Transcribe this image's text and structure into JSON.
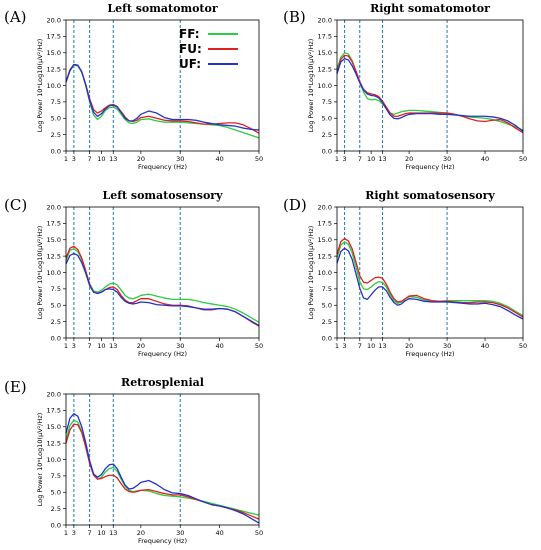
{
  "chart_data": [
    {
      "type": "line",
      "panel_label": "(A)",
      "title": "Left somatomotor",
      "xlabel": "Frequency (Hz)",
      "ylabel": "Log Power 10*Log10(µV²/Hz)",
      "xlim": [
        1,
        50
      ],
      "ylim": [
        0,
        20
      ],
      "xticks": [
        1,
        3,
        7,
        10,
        13,
        20,
        30,
        40,
        50
      ],
      "yticks": [
        0.0,
        2.5,
        5.0,
        7.5,
        10.0,
        12.5,
        15.0,
        17.5,
        20.0
      ],
      "vlines": [
        3,
        7,
        13,
        30
      ],
      "legend": {
        "placement": "top-right"
      },
      "x": [
        1,
        2,
        3,
        4,
        5,
        6,
        7,
        8,
        9,
        10,
        11,
        12,
        13,
        14,
        15,
        16,
        17,
        18,
        19,
        20,
        22,
        24,
        26,
        28,
        30,
        32,
        34,
        36,
        38,
        40,
        42,
        44,
        46,
        48,
        50
      ],
      "series": [
        {
          "name": "FF:",
          "color": "#2ecc40",
          "values": [
            10.5,
            12.2,
            13.1,
            13.0,
            12.0,
            10.0,
            7.5,
            5.5,
            4.8,
            5.3,
            6.2,
            6.6,
            6.7,
            6.4,
            5.6,
            4.8,
            4.3,
            4.2,
            4.4,
            4.8,
            4.9,
            4.6,
            4.4,
            4.4,
            4.4,
            4.3,
            4.2,
            4.1,
            4.0,
            3.9,
            3.6,
            3.2,
            2.8,
            2.4,
            2.0
          ]
        },
        {
          "name": "FU:",
          "color": "#e02020",
          "values": [
            10.6,
            12.4,
            13.2,
            13.1,
            12.1,
            10.2,
            8.0,
            6.3,
            5.8,
            6.1,
            6.6,
            7.0,
            7.1,
            6.8,
            6.0,
            5.2,
            4.6,
            4.5,
            4.7,
            5.1,
            5.3,
            5.0,
            4.7,
            4.6,
            4.6,
            4.5,
            4.3,
            4.1,
            4.1,
            4.2,
            4.3,
            4.3,
            4.0,
            3.4,
            2.7
          ]
        },
        {
          "name": "UF:",
          "color": "#2233cc",
          "values": [
            10.5,
            12.3,
            13.2,
            13.1,
            12.1,
            10.1,
            7.7,
            5.9,
            5.3,
            5.7,
            6.4,
            6.9,
            7.0,
            6.7,
            5.9,
            5.0,
            4.6,
            4.6,
            5.0,
            5.6,
            6.1,
            5.8,
            5.1,
            4.8,
            4.8,
            4.8,
            4.7,
            4.4,
            4.2,
            4.0,
            3.9,
            3.8,
            3.5,
            3.3,
            3.2
          ]
        }
      ]
    },
    {
      "type": "line",
      "panel_label": "(B)",
      "title": "Right somatomotor",
      "xlabel": "Frequency (Hz)",
      "ylabel": "Log Power 10*Log10(µV²/Hz)",
      "xlim": [
        1,
        50
      ],
      "ylim": [
        0,
        20
      ],
      "xticks": [
        1,
        3,
        7,
        10,
        13,
        20,
        30,
        40,
        50
      ],
      "yticks": [
        0.0,
        2.5,
        5.0,
        7.5,
        10.0,
        12.5,
        15.0,
        17.5,
        20.0
      ],
      "vlines": [
        3,
        7,
        13,
        30
      ],
      "x": [
        1,
        2,
        3,
        4,
        5,
        6,
        7,
        8,
        9,
        10,
        11,
        12,
        13,
        14,
        15,
        16,
        17,
        18,
        19,
        20,
        22,
        24,
        26,
        28,
        30,
        32,
        34,
        36,
        38,
        40,
        42,
        44,
        46,
        48,
        50
      ],
      "series": [
        {
          "name": "FF:",
          "color": "#2ecc40",
          "values": [
            12.5,
            14.3,
            15.0,
            14.8,
            13.8,
            12.2,
            10.5,
            9.0,
            8.0,
            7.8,
            7.9,
            7.7,
            7.2,
            6.5,
            5.8,
            5.6,
            5.8,
            6.0,
            6.1,
            6.2,
            6.2,
            6.1,
            6.0,
            5.9,
            5.8,
            5.6,
            5.4,
            5.2,
            5.1,
            5.0,
            4.8,
            4.5,
            4.1,
            3.7,
            3.2
          ]
        },
        {
          "name": "FU:",
          "color": "#e02020",
          "values": [
            12.0,
            14.0,
            14.6,
            14.5,
            13.6,
            12.2,
            10.6,
            9.4,
            8.9,
            8.7,
            8.6,
            8.3,
            7.6,
            6.7,
            5.8,
            5.3,
            5.3,
            5.5,
            5.7,
            5.8,
            5.8,
            5.8,
            5.8,
            5.8,
            5.8,
            5.6,
            5.3,
            4.9,
            4.6,
            4.5,
            4.7,
            4.8,
            4.3,
            3.5,
            2.8
          ]
        },
        {
          "name": "UF:",
          "color": "#2233cc",
          "values": [
            11.8,
            13.6,
            14.1,
            13.9,
            13.0,
            11.8,
            10.4,
            9.3,
            8.7,
            8.5,
            8.4,
            8.1,
            7.4,
            6.4,
            5.5,
            5.0,
            4.9,
            5.1,
            5.4,
            5.6,
            5.7,
            5.7,
            5.7,
            5.6,
            5.6,
            5.5,
            5.4,
            5.3,
            5.3,
            5.3,
            5.2,
            5.0,
            4.6,
            3.9,
            3.0
          ]
        }
      ]
    },
    {
      "type": "line",
      "panel_label": "(C)",
      "title": "Left somatosensory",
      "xlabel": "Frequency (Hz)",
      "ylabel": "Log Power 10*Log10(µV²/Hz)",
      "xlim": [
        1,
        50
      ],
      "ylim": [
        0,
        20
      ],
      "xticks": [
        1,
        3,
        7,
        10,
        13,
        20,
        30,
        40,
        50
      ],
      "yticks": [
        0.0,
        2.5,
        5.0,
        7.5,
        10.0,
        12.5,
        15.0,
        17.5,
        20.0
      ],
      "vlines": [
        3,
        7,
        13,
        30
      ],
      "x": [
        1,
        2,
        3,
        4,
        5,
        6,
        7,
        8,
        9,
        10,
        11,
        12,
        13,
        14,
        15,
        16,
        17,
        18,
        19,
        20,
        22,
        24,
        26,
        28,
        30,
        32,
        34,
        36,
        38,
        40,
        42,
        44,
        46,
        48,
        50
      ],
      "series": [
        {
          "name": "FF:",
          "color": "#2ecc40",
          "values": [
            11.8,
            13.4,
            13.6,
            13.2,
            12.0,
            10.2,
            8.3,
            7.2,
            7.0,
            7.3,
            7.8,
            8.2,
            8.4,
            8.1,
            7.3,
            6.5,
            6.1,
            6.0,
            6.2,
            6.5,
            6.7,
            6.4,
            6.1,
            5.9,
            5.9,
            5.9,
            5.7,
            5.4,
            5.2,
            5.0,
            4.8,
            4.4,
            3.8,
            3.1,
            2.4
          ]
        },
        {
          "name": "FU:",
          "color": "#e02020",
          "values": [
            12.2,
            13.7,
            14.0,
            13.5,
            12.2,
            10.3,
            8.2,
            7.0,
            6.8,
            7.0,
            7.4,
            7.7,
            7.8,
            7.4,
            6.5,
            5.8,
            5.4,
            5.4,
            5.7,
            6.0,
            6.0,
            5.6,
            5.2,
            5.0,
            5.0,
            4.9,
            4.6,
            4.3,
            4.3,
            4.5,
            4.4,
            4.0,
            3.3,
            2.5,
            1.8
          ]
        },
        {
          "name": "UF:",
          "color": "#2233cc",
          "values": [
            11.3,
            12.6,
            12.9,
            12.6,
            11.5,
            9.9,
            8.0,
            7.0,
            6.8,
            7.0,
            7.4,
            7.5,
            7.4,
            7.0,
            6.2,
            5.6,
            5.3,
            5.2,
            5.3,
            5.5,
            5.4,
            5.1,
            5.0,
            4.9,
            4.9,
            4.8,
            4.6,
            4.4,
            4.4,
            4.5,
            4.4,
            4.0,
            3.3,
            2.6,
            1.9
          ]
        }
      ]
    },
    {
      "type": "line",
      "panel_label": "(D)",
      "title": "Right somatosensory",
      "xlabel": "Frequency (Hz)",
      "ylabel": "Log Power 10*Log10(µV²/Hz)",
      "xlim": [
        1,
        50
      ],
      "ylim": [
        0,
        20
      ],
      "xticks": [
        1,
        3,
        7,
        10,
        13,
        20,
        30,
        40,
        50
      ],
      "yticks": [
        0.0,
        2.5,
        5.0,
        7.5,
        10.0,
        12.5,
        15.0,
        17.5,
        20.0
      ],
      "vlines": [
        3,
        7,
        13,
        30
      ],
      "x": [
        1,
        2,
        3,
        4,
        5,
        6,
        7,
        8,
        9,
        10,
        11,
        12,
        13,
        14,
        15,
        16,
        17,
        18,
        19,
        20,
        22,
        24,
        26,
        28,
        30,
        32,
        34,
        36,
        38,
        40,
        42,
        44,
        46,
        48,
        50
      ],
      "series": [
        {
          "name": "FF:",
          "color": "#2ecc40",
          "values": [
            12.2,
            14.2,
            14.7,
            14.3,
            13.0,
            10.8,
            8.6,
            7.5,
            7.4,
            7.8,
            8.3,
            8.6,
            8.5,
            7.8,
            6.6,
            5.7,
            5.3,
            5.5,
            6.0,
            6.3,
            6.2,
            5.8,
            5.6,
            5.6,
            5.7,
            5.7,
            5.7,
            5.7,
            5.7,
            5.7,
            5.6,
            5.3,
            4.8,
            4.1,
            3.4
          ]
        },
        {
          "name": "FU:",
          "color": "#e02020",
          "values": [
            12.8,
            14.7,
            15.2,
            14.8,
            13.6,
            11.6,
            9.5,
            8.5,
            8.4,
            8.8,
            9.2,
            9.3,
            9.1,
            8.2,
            7.0,
            6.0,
            5.5,
            5.6,
            6.0,
            6.4,
            6.5,
            6.0,
            5.7,
            5.6,
            5.6,
            5.5,
            5.4,
            5.4,
            5.5,
            5.5,
            5.4,
            5.1,
            4.6,
            3.9,
            3.2
          ]
        },
        {
          "name": "UF:",
          "color": "#2233cc",
          "values": [
            11.4,
            13.2,
            13.7,
            13.3,
            12.0,
            9.8,
            7.6,
            6.1,
            5.9,
            6.6,
            7.3,
            7.8,
            7.8,
            7.2,
            6.2,
            5.4,
            5.0,
            5.2,
            5.7,
            6.0,
            5.9,
            5.6,
            5.5,
            5.5,
            5.5,
            5.4,
            5.3,
            5.2,
            5.2,
            5.3,
            5.1,
            4.8,
            4.2,
            3.5,
            2.9
          ]
        }
      ]
    },
    {
      "type": "line",
      "panel_label": "(E)",
      "title": "Retrosplenial",
      "xlabel": "Frequency (Hz)",
      "ylabel": "Log Power 10*Log10(µV²/Hz)",
      "xlim": [
        1,
        50
      ],
      "ylim": [
        0,
        20
      ],
      "xticks": [
        1,
        3,
        7,
        10,
        13,
        20,
        30,
        40,
        50
      ],
      "yticks": [
        0.0,
        2.5,
        5.0,
        7.5,
        10.0,
        12.5,
        15.0,
        17.5,
        20.0
      ],
      "vlines": [
        3,
        7,
        13,
        30
      ],
      "x": [
        1,
        2,
        3,
        4,
        5,
        6,
        7,
        8,
        9,
        10,
        11,
        12,
        13,
        14,
        15,
        16,
        17,
        18,
        19,
        20,
        22,
        24,
        26,
        28,
        30,
        32,
        34,
        36,
        38,
        40,
        42,
        44,
        46,
        48,
        50
      ],
      "series": [
        {
          "name": "FF:",
          "color": "#2ecc40",
          "values": [
            13.0,
            15.2,
            16.0,
            15.7,
            14.3,
            12.2,
            9.8,
            7.8,
            7.0,
            7.3,
            8.1,
            8.6,
            8.8,
            8.2,
            7.0,
            5.9,
            5.3,
            5.1,
            5.2,
            5.3,
            5.2,
            4.8,
            4.5,
            4.4,
            4.3,
            4.1,
            3.9,
            3.6,
            3.3,
            3.0,
            2.7,
            2.4,
            2.1,
            1.8,
            1.5
          ]
        },
        {
          "name": "FU:",
          "color": "#e02020",
          "values": [
            12.5,
            14.5,
            15.4,
            15.3,
            14.1,
            11.9,
            9.4,
            7.6,
            7.0,
            7.1,
            7.4,
            7.6,
            7.6,
            7.2,
            6.3,
            5.5,
            5.1,
            5.0,
            5.1,
            5.3,
            5.4,
            5.1,
            4.8,
            4.6,
            4.6,
            4.3,
            3.9,
            3.5,
            3.1,
            2.9,
            2.6,
            2.3,
            1.9,
            1.4,
            0.9
          ]
        },
        {
          "name": "UF:",
          "color": "#2233cc",
          "values": [
            14.0,
            16.3,
            17.0,
            16.6,
            15.0,
            12.6,
            9.8,
            7.8,
            7.3,
            7.7,
            8.6,
            9.2,
            9.3,
            8.6,
            7.3,
            6.1,
            5.5,
            5.6,
            6.0,
            6.5,
            6.8,
            6.2,
            5.4,
            4.9,
            4.8,
            4.5,
            4.0,
            3.5,
            3.1,
            2.9,
            2.6,
            2.2,
            1.7,
            1.0,
            0.3
          ]
        }
      ]
    }
  ]
}
